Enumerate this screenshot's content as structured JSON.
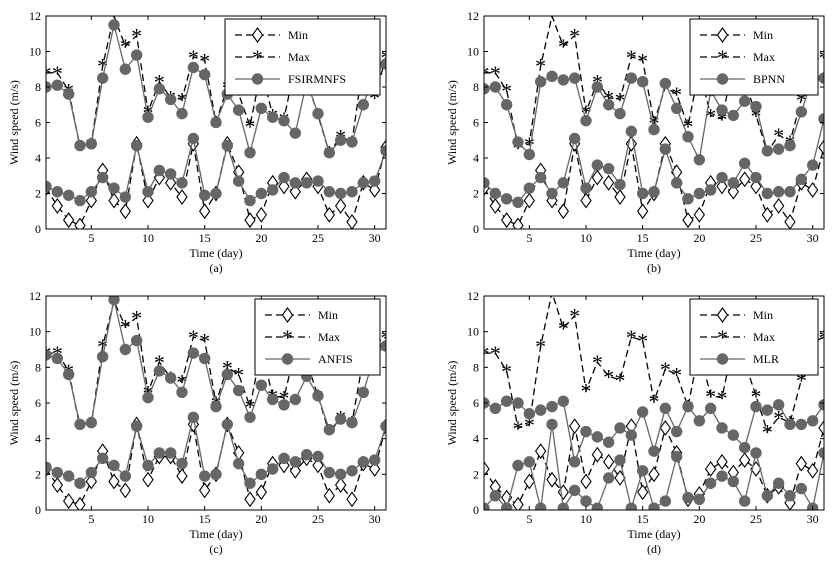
{
  "chart_data": [
    {
      "type": "line",
      "panel_label": "(a)",
      "xlabel": "Time (day)",
      "ylabel": "Wind speed (m/s)",
      "xlim": [
        1,
        31
      ],
      "ylim": [
        0,
        12
      ],
      "xticks": [
        5,
        10,
        15,
        20,
        25,
        30
      ],
      "yticks": [
        0,
        2,
        4,
        6,
        8,
        10,
        12
      ],
      "grid": false,
      "legend_position": "top-right",
      "x": [
        1,
        2,
        3,
        4,
        5,
        6,
        7,
        8,
        9,
        10,
        11,
        12,
        13,
        14,
        15,
        16,
        17,
        18,
        19,
        20,
        21,
        22,
        23,
        24,
        25,
        26,
        27,
        28,
        29,
        30,
        31
      ],
      "series": [
        {
          "name": "Min",
          "marker": "diamond",
          "line": "dashed",
          "values": [
            2.3,
            1.3,
            0.5,
            0.2,
            1.6,
            3.3,
            1.6,
            1.0,
            4.8,
            1.6,
            2.9,
            2.6,
            1.8,
            4.8,
            1.0,
            2.0,
            4.8,
            3.2,
            0.5,
            0.8,
            2.6,
            2.4,
            2.1,
            2.8,
            2.4,
            0.8,
            1.3,
            0.4,
            2.6,
            2.2,
            4.6
          ]
        },
        {
          "name": "Max",
          "marker": "star",
          "line": "dashed",
          "values": [
            8.8,
            8.8,
            7.8,
            4.6,
            4.8,
            9.2,
            12.0,
            10.3,
            10.9,
            6.6,
            8.3,
            7.4,
            7.3,
            9.7,
            9.5,
            6.0,
            8.0,
            7.6,
            5.8,
            9.0,
            6.4,
            6.2,
            9.3,
            8.4,
            6.4,
            4.3,
            5.2,
            4.9,
            9.4,
            7.4,
            9.7
          ]
        },
        {
          "name": "FSIRMNFS",
          "marker": "circle",
          "line": "solid",
          "values": [
            8.0,
            8.1,
            7.6,
            4.7,
            4.8,
            8.5,
            11.5,
            9.0,
            9.8,
            6.3,
            7.9,
            7.3,
            6.5,
            9.1,
            8.7,
            6.0,
            7.6,
            6.7,
            4.3,
            6.8,
            6.3,
            6.1,
            5.4,
            8.3,
            6.5,
            4.3,
            5.0,
            4.9,
            7.0,
            8.8,
            9.3
          ]
        },
        {
          "name": "",
          "marker": "circle",
          "line": "solid",
          "values": [
            2.4,
            2.1,
            1.9,
            1.6,
            2.1,
            2.9,
            2.3,
            1.8,
            4.7,
            2.1,
            3.3,
            3.1,
            2.6,
            5.1,
            1.9,
            2.0,
            4.7,
            2.7,
            1.6,
            2.0,
            2.2,
            2.9,
            2.6,
            2.6,
            2.7,
            2.1,
            2.0,
            2.1,
            2.6,
            2.7,
            4.4
          ]
        }
      ]
    },
    {
      "type": "line",
      "panel_label": "(b)",
      "xlabel": "Time (day)",
      "ylabel": "Wind speed (m/s)",
      "xlim": [
        1,
        31
      ],
      "ylim": [
        0,
        12
      ],
      "xticks": [
        5,
        10,
        15,
        20,
        25,
        30
      ],
      "yticks": [
        0,
        2,
        4,
        6,
        8,
        10,
        12
      ],
      "grid": false,
      "legend_position": "top-right",
      "x": [
        1,
        2,
        3,
        4,
        5,
        6,
        7,
        8,
        9,
        10,
        11,
        12,
        13,
        14,
        15,
        16,
        17,
        18,
        19,
        20,
        21,
        22,
        23,
        24,
        25,
        26,
        27,
        28,
        29,
        30,
        31
      ],
      "series": [
        {
          "name": "Min",
          "marker": "diamond",
          "line": "dashed",
          "values": [
            2.3,
            1.3,
            0.5,
            0.2,
            1.6,
            3.3,
            1.6,
            1.0,
            4.8,
            1.6,
            2.9,
            2.6,
            1.8,
            4.8,
            1.0,
            2.0,
            4.8,
            3.2,
            0.5,
            0.8,
            2.6,
            2.4,
            2.1,
            2.8,
            2.4,
            0.8,
            1.3,
            0.4,
            2.6,
            2.2,
            4.6
          ]
        },
        {
          "name": "Max",
          "marker": "star",
          "line": "dashed",
          "values": [
            8.8,
            8.8,
            7.8,
            4.6,
            4.8,
            9.2,
            12.0,
            10.3,
            10.9,
            6.6,
            8.3,
            7.4,
            7.3,
            9.7,
            9.5,
            6.0,
            8.0,
            7.6,
            5.8,
            9.0,
            6.4,
            6.2,
            9.3,
            8.4,
            6.4,
            4.3,
            5.3,
            4.9,
            7.3,
            9.5,
            9.7
          ]
        },
        {
          "name": "BPNN",
          "marker": "circle",
          "line": "solid",
          "values": [
            7.9,
            8.0,
            7.0,
            4.9,
            4.2,
            8.3,
            8.6,
            8.4,
            8.5,
            6.1,
            8.0,
            7.0,
            6.5,
            8.5,
            8.3,
            5.6,
            8.2,
            6.8,
            5.2,
            3.9,
            7.8,
            6.7,
            6.4,
            7.2,
            6.9,
            4.4,
            4.5,
            4.7,
            6.6,
            8.5,
            8.5
          ]
        },
        {
          "name": "",
          "marker": "circle",
          "line": "solid",
          "values": [
            2.6,
            2.0,
            1.7,
            1.5,
            2.3,
            2.9,
            2.0,
            2.6,
            5.1,
            2.3,
            3.6,
            3.4,
            2.5,
            5.5,
            2.0,
            2.1,
            4.5,
            2.6,
            1.7,
            2.0,
            2.2,
            2.9,
            2.6,
            3.7,
            2.9,
            2.0,
            2.1,
            2.1,
            2.8,
            3.6,
            6.2
          ]
        }
      ]
    },
    {
      "type": "line",
      "panel_label": "(c)",
      "xlabel": "Time (day)",
      "ylabel": "Wind speed (m/s)",
      "xlim": [
        1,
        31
      ],
      "ylim": [
        0,
        12
      ],
      "xticks": [
        5,
        10,
        15,
        20,
        25,
        30
      ],
      "yticks": [
        0,
        2,
        4,
        6,
        8,
        10,
        12
      ],
      "grid": false,
      "legend_position": "top-right",
      "x": [
        1,
        2,
        3,
        4,
        5,
        6,
        7,
        8,
        9,
        10,
        11,
        12,
        13,
        14,
        15,
        16,
        17,
        18,
        19,
        20,
        21,
        22,
        23,
        24,
        25,
        26,
        27,
        28,
        29,
        30,
        31
      ],
      "series": [
        {
          "name": "Min",
          "marker": "diamond",
          "line": "dashed",
          "values": [
            2.3,
            1.4,
            0.5,
            0.3,
            1.6,
            3.3,
            1.6,
            1.1,
            4.8,
            1.7,
            3.0,
            3.0,
            1.9,
            4.8,
            1.1,
            2.0,
            4.8,
            3.2,
            0.6,
            1.0,
            2.6,
            2.5,
            2.2,
            2.9,
            2.5,
            0.8,
            1.4,
            0.6,
            2.6,
            2.3,
            4.7
          ]
        },
        {
          "name": "Max",
          "marker": "star",
          "line": "dashed",
          "values": [
            8.8,
            8.8,
            7.8,
            4.6,
            4.8,
            9.2,
            11.7,
            10.3,
            10.8,
            6.6,
            8.3,
            7.4,
            7.2,
            9.7,
            9.5,
            6.0,
            8.0,
            7.6,
            5.8,
            9.0,
            6.4,
            6.3,
            9.0,
            8.3,
            6.4,
            4.3,
            5.2,
            4.9,
            8.5,
            9.3,
            9.7
          ]
        },
        {
          "name": "ANFIS",
          "marker": "circle",
          "line": "solid",
          "values": [
            8.7,
            8.5,
            7.6,
            4.8,
            4.9,
            8.6,
            11.8,
            9.0,
            9.5,
            6.3,
            7.8,
            7.4,
            6.6,
            8.8,
            8.5,
            5.8,
            7.6,
            6.7,
            5.2,
            7.0,
            6.2,
            5.9,
            6.2,
            7.5,
            6.4,
            4.5,
            5.1,
            4.9,
            6.6,
            8.7,
            9.2
          ]
        },
        {
          "name": "",
          "marker": "circle",
          "line": "solid",
          "values": [
            2.4,
            2.1,
            1.9,
            1.5,
            2.1,
            2.9,
            2.5,
            1.9,
            4.7,
            2.5,
            3.2,
            3.2,
            2.6,
            5.2,
            1.9,
            2.0,
            4.8,
            2.6,
            1.5,
            2.0,
            2.3,
            2.9,
            2.7,
            3.1,
            3.0,
            2.1,
            2.0,
            2.2,
            2.7,
            2.8,
            4.7
          ]
        }
      ]
    },
    {
      "type": "line",
      "panel_label": "(d)",
      "xlabel": "Time (day)",
      "ylabel": "Wind speed (m/s)",
      "xlim": [
        1,
        31
      ],
      "ylim": [
        0,
        12
      ],
      "xticks": [
        5,
        10,
        15,
        20,
        25,
        30
      ],
      "yticks": [
        0,
        2,
        4,
        6,
        8,
        10,
        12
      ],
      "grid": false,
      "legend_position": "top-right",
      "x": [
        1,
        2,
        3,
        4,
        5,
        6,
        7,
        8,
        9,
        10,
        11,
        12,
        13,
        14,
        15,
        16,
        17,
        18,
        19,
        20,
        21,
        22,
        23,
        24,
        25,
        26,
        27,
        28,
        29,
        30,
        31
      ],
      "series": [
        {
          "name": "Min",
          "marker": "diamond",
          "line": "dashed",
          "values": [
            2.3,
            1.3,
            0.7,
            0.3,
            1.6,
            3.3,
            1.7,
            1.0,
            4.7,
            1.6,
            3.1,
            2.7,
            1.8,
            4.7,
            1.0,
            2.0,
            4.6,
            3.2,
            0.6,
            0.9,
            2.3,
            2.7,
            2.1,
            2.8,
            2.3,
            0.8,
            1.3,
            0.4,
            2.6,
            2.2,
            4.6
          ]
        },
        {
          "name": "Max",
          "marker": "star",
          "line": "dashed",
          "values": [
            8.8,
            8.8,
            7.8,
            4.6,
            4.8,
            9.2,
            12.2,
            10.2,
            10.9,
            6.7,
            8.3,
            7.5,
            7.3,
            9.7,
            9.5,
            6.1,
            7.9,
            7.6,
            5.8,
            9.0,
            6.4,
            6.3,
            9.3,
            8.3,
            6.4,
            4.4,
            5.2,
            4.9,
            7.3,
            9.4,
            9.7
          ]
        },
        {
          "name": "MLR",
          "marker": "circle",
          "line": "solid",
          "values": [
            6.0,
            5.7,
            6.1,
            6.0,
            5.4,
            5.6,
            5.8,
            6.1,
            2.7,
            4.4,
            4.1,
            3.8,
            4.6,
            4.2,
            5.5,
            3.3,
            5.7,
            4.4,
            5.8,
            5.0,
            5.7,
            4.6,
            4.2,
            3.5,
            5.8,
            5.6,
            5.9,
            4.8,
            4.8,
            5.0,
            5.9
          ]
        },
        {
          "name": "",
          "marker": "circle",
          "line": "solid",
          "values": [
            0.1,
            0.8,
            0.1,
            2.5,
            2.7,
            0.1,
            4.8,
            0.1,
            1.1,
            0.5,
            0.1,
            1.8,
            2.8,
            0.1,
            2.2,
            0.1,
            0.5,
            3.0,
            0.7,
            0.6,
            1.5,
            1.9,
            1.6,
            0.5,
            3.2,
            0.8,
            1.5,
            0.8,
            1.2,
            0.1,
            3.2
          ]
        }
      ]
    }
  ]
}
